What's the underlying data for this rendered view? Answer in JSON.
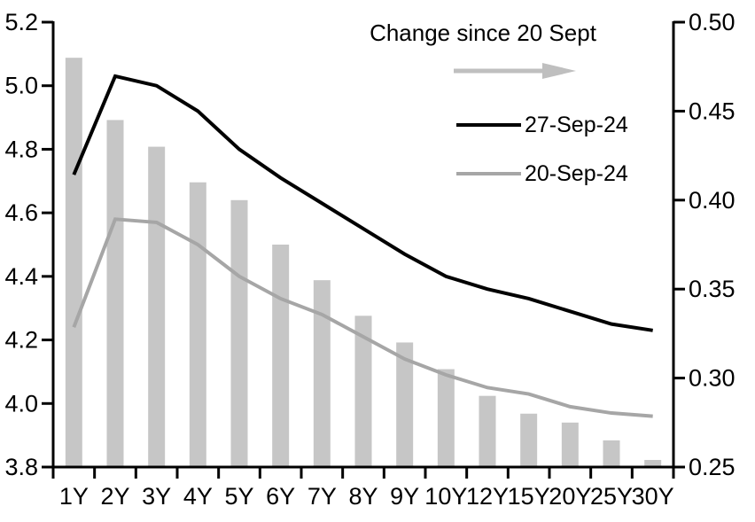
{
  "chart_data": {
    "type": "combo",
    "title": "",
    "categories": [
      "1Y",
      "2Y",
      "3Y",
      "4Y",
      "5Y",
      "6Y",
      "7Y",
      "8Y",
      "9Y",
      "10Y",
      "12Y",
      "15Y",
      "20Y",
      "25Y",
      "30Y"
    ],
    "series": [
      {
        "name": "Change since 20 Sept",
        "type": "bar",
        "axis": "right",
        "color": "#c6c6c6",
        "values": [
          0.48,
          0.445,
          0.43,
          0.41,
          0.4,
          0.375,
          0.355,
          0.335,
          0.32,
          0.305,
          0.29,
          0.28,
          0.275,
          0.265,
          0.254
        ]
      },
      {
        "name": "27-Sep-24",
        "type": "line",
        "axis": "left",
        "color": "#000000",
        "values": [
          4.72,
          5.03,
          5.0,
          4.92,
          4.8,
          4.71,
          4.63,
          4.55,
          4.47,
          4.4,
          4.36,
          4.33,
          4.29,
          4.25,
          4.23
        ]
      },
      {
        "name": "20-Sep-24",
        "type": "line",
        "axis": "left",
        "color": "#a6a6a6",
        "values": [
          4.24,
          4.58,
          4.57,
          4.5,
          4.4,
          4.33,
          4.28,
          4.21,
          4.14,
          4.09,
          4.05,
          4.03,
          3.99,
          3.97,
          3.96
        ]
      }
    ],
    "left_axis": {
      "min": 3.8,
      "max": 5.2,
      "tick_labels": [
        "5.2",
        "5.0",
        "4.8",
        "4.6",
        "4.4",
        "4.2",
        "4.0",
        "3.8"
      ]
    },
    "right_axis": {
      "min": 0.25,
      "max": 0.5,
      "tick_labels": [
        "0.50",
        "0.45",
        "0.40",
        "0.35",
        "0.30",
        "0.25"
      ]
    },
    "grid": false,
    "legend": {
      "position": "top-right",
      "arrow_color": "#bfbfbf",
      "entries": [
        "Change since 20 Sept",
        "27-Sep-24",
        "20-Sep-24"
      ]
    }
  }
}
